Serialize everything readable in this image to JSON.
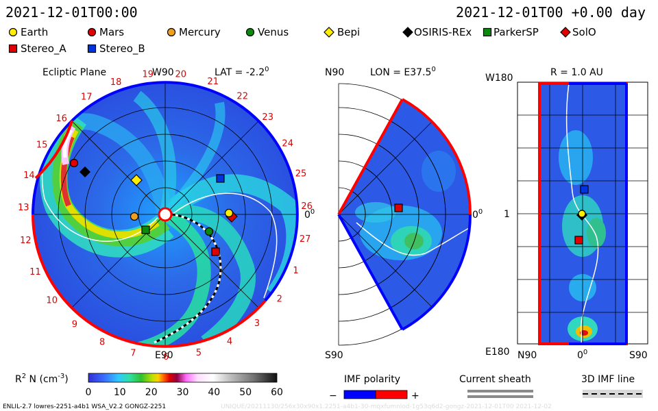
{
  "header": {
    "left_time": "2021-12-01T00:00",
    "right_time": "2021-12-01T00 +0.00 day"
  },
  "legend": {
    "items": [
      {
        "label": "Earth",
        "color": "#ffee00",
        "shape": "circle"
      },
      {
        "label": "Mars",
        "color": "#e00000",
        "shape": "circle"
      },
      {
        "label": "Mercury",
        "color": "#f0a020",
        "shape": "circle"
      },
      {
        "label": "Venus",
        "color": "#0a8a0a",
        "shape": "circle"
      },
      {
        "label": "Bepi",
        "color": "#ffee00",
        "shape": "diamond"
      },
      {
        "label": "OSIRIS-REx",
        "color": "#000000",
        "shape": "diamond"
      },
      {
        "label": "ParkerSP",
        "color": "#0a8a0a",
        "shape": "square"
      },
      {
        "label": "SolO",
        "color": "#e00000",
        "shape": "diamond"
      },
      {
        "label": "Stereo_A",
        "color": "#e00000",
        "shape": "square"
      },
      {
        "label": "Stereo_B",
        "color": "#0033dd",
        "shape": "square"
      }
    ]
  },
  "panels": {
    "ecliptic": {
      "title": "Ecliptic Plane",
      "top_label": "W90",
      "lat": "LAT = -2.2",
      "lat_deg": "0",
      "bottom_label": "E90",
      "right_label": "0",
      "right_label_sup": "0",
      "sector_numbers": [
        "19",
        "20",
        "21",
        "22",
        "23",
        "24",
        "25",
        "26",
        "27",
        "1",
        "2",
        "3",
        "4",
        "5",
        "6",
        "7",
        "8",
        "9",
        "10",
        "11",
        "12",
        "13",
        "14",
        "15",
        "16",
        "17",
        "18"
      ]
    },
    "meridional": {
      "top_left": "N90",
      "lon": "LON = E37.5",
      "lon_deg": "0",
      "bottom_left": "S90",
      "right_label": "0",
      "right_label_sup": "0"
    },
    "radial": {
      "title": "R = 1.0 AU",
      "top_left": "W180",
      "mid_left": "1",
      "bottom_left": "E180",
      "x_labels": [
        "N90",
        "0",
        "S90"
      ],
      "x_mid_sup": "0"
    }
  },
  "colorbar": {
    "label": "R",
    "label_sup": "2",
    "label_rest": " N (cm",
    "label_exp": "-3",
    "label_close": ")",
    "ticks": [
      "0",
      "10",
      "20",
      "30",
      "40",
      "50",
      "60"
    ]
  },
  "imf": {
    "polarity_title": "IMF polarity",
    "minus": "−",
    "plus": "+",
    "current_sheath": "Current sheath",
    "imf_line": "3D IMF line",
    "negative_color": "#0000ff",
    "positive_color": "#ff0000"
  },
  "footer": {
    "left": "ENLIL-2.7 lowres-2251-a4b1 WSA_V2.2 GONGZ-2251",
    "right": "UNIQUE/20211130/256x30x90x1.2251-a4b1-30-mqxfumnlod-1g53q6d2-gongz-2021-12-01T00 2021-12-02"
  },
  "chart_data": {
    "type": "heatmap",
    "title": "",
    "variable": "R^2 N (cm^-3)",
    "color_range": [
      0,
      60
    ],
    "colorbar_ticks": [
      0,
      10,
      20,
      30,
      40,
      50,
      60
    ],
    "time": "2021-12-01T00:00",
    "offset_days": 0.0,
    "ecliptic_lat_deg": -2.2,
    "meridional_lon_deg": 37.5,
    "radial_shell_au": 1.0,
    "bodies": [
      {
        "name": "Earth",
        "panel": "ecliptic"
      },
      {
        "name": "Mars",
        "panel": "ecliptic"
      },
      {
        "name": "Mercury",
        "panel": "ecliptic"
      },
      {
        "name": "Venus",
        "panel": "ecliptic"
      },
      {
        "name": "Bepi",
        "panel": "ecliptic"
      },
      {
        "name": "OSIRIS-REx",
        "panel": "ecliptic"
      },
      {
        "name": "ParkerSP",
        "panel": "ecliptic"
      },
      {
        "name": "SolO",
        "panel": "ecliptic"
      },
      {
        "name": "Stereo_A",
        "panel": "ecliptic"
      },
      {
        "name": "Stereo_B",
        "panel": "ecliptic"
      }
    ]
  }
}
